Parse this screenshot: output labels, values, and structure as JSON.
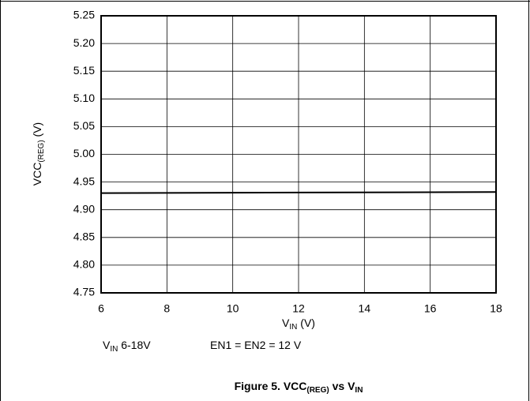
{
  "chart_data": {
    "type": "line",
    "title": [
      "Figure 5. VCC",
      "(REG)",
      " vs V",
      "IN"
    ],
    "y_label": [
      "VCC",
      "(REG)",
      " (V)"
    ],
    "x_label": [
      "V",
      "IN",
      " (V)"
    ],
    "annotations": [
      [
        "V",
        "IN",
        " 6-18V"
      ],
      [
        "EN1 = EN2 = 12 V"
      ]
    ],
    "x": [
      6,
      18
    ],
    "series": [
      {
        "name": "VCC(REG)",
        "color": "#000000",
        "values": [
          4.93,
          4.932
        ]
      }
    ],
    "xlim": [
      6,
      18
    ],
    "xticks": [
      6,
      8,
      10,
      12,
      14,
      16,
      18
    ],
    "ylim": [
      4.75,
      5.25
    ],
    "yticks": [
      4.75,
      {
        "value": 4.8,
        "label": "4.80"
      },
      4.85,
      {
        "value": 4.9,
        "label": "4.90"
      },
      4.95,
      {
        "value": 5.0,
        "label": "5.00"
      },
      5.05,
      {
        "value": 5.1,
        "label": "5.10"
      },
      5.15,
      {
        "value": 5.2,
        "label": "5.20"
      },
      5.25
    ],
    "grid": true
  }
}
